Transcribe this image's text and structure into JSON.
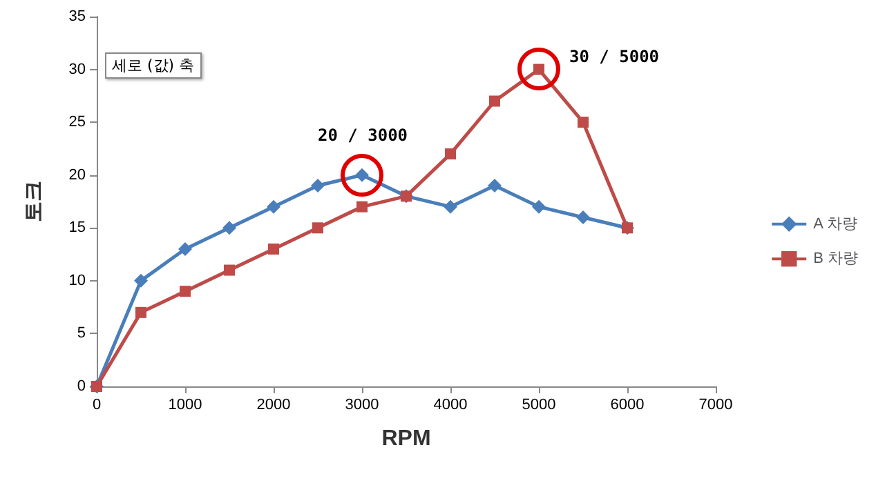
{
  "chart_data": {
    "type": "line",
    "xlabel": "RPM",
    "ylabel": "토크",
    "x": [
      0,
      500,
      1000,
      1500,
      2000,
      2500,
      3000,
      3500,
      4000,
      4500,
      5000,
      5500,
      6000
    ],
    "series": [
      {
        "name": "A 차량",
        "color": "#4a7ebb",
        "marker": "diamond",
        "values": [
          0,
          10,
          13,
          15,
          17,
          19,
          20,
          18,
          17,
          19,
          17,
          16,
          15
        ]
      },
      {
        "name": "B 차량",
        "color": "#be4b48",
        "marker": "square",
        "values": [
          0,
          7,
          9,
          11,
          13,
          15,
          17,
          18,
          22,
          27,
          30,
          25,
          15
        ]
      }
    ],
    "xlim": [
      0,
      7000
    ],
    "xticks": [
      0,
      1000,
      2000,
      3000,
      4000,
      5000,
      6000,
      7000
    ],
    "ylim": [
      0,
      35
    ],
    "yticks": [
      0,
      5,
      10,
      15,
      20,
      25,
      30,
      35
    ],
    "grid": false,
    "legend": "right",
    "annotations": [
      {
        "text": "20 / 3000",
        "x": 3000,
        "y": 20
      },
      {
        "text": "30 / 5000",
        "x": 5000,
        "y": 30
      },
      "세로 (값) 축"
    ]
  }
}
